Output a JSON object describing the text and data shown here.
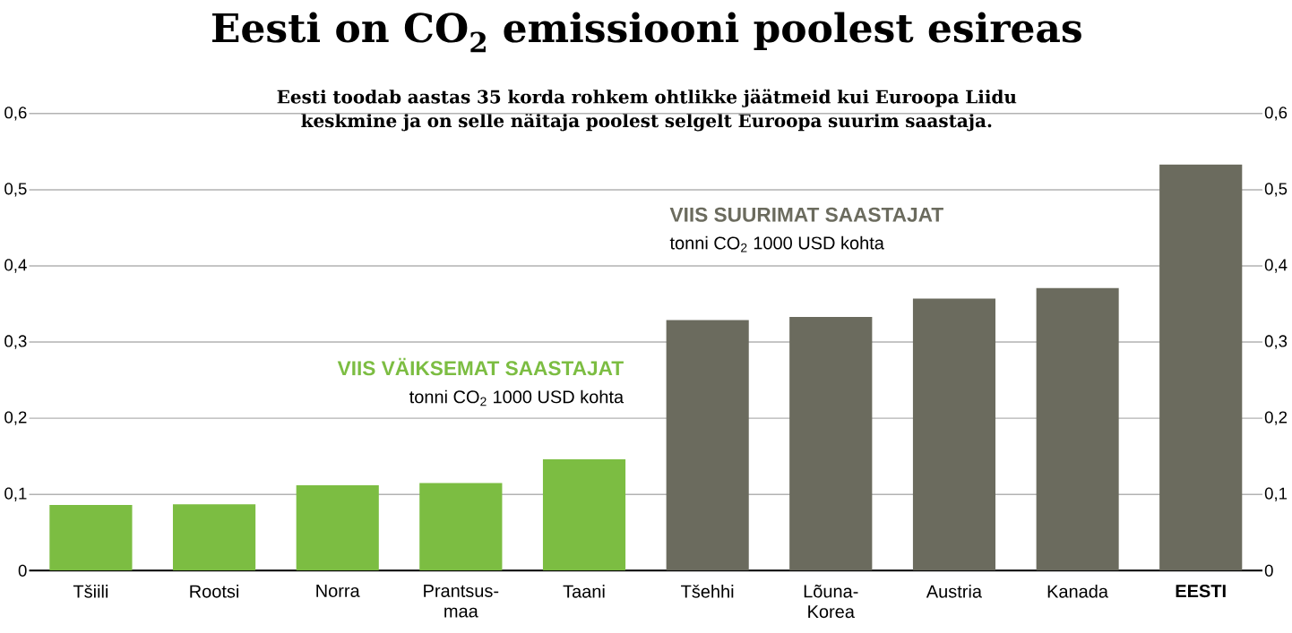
{
  "chart_data": {
    "type": "bar",
    "title": "Eesti on CO$_{2}$ emissiooni poolest esireas",
    "subtitle": "Eesti toodab aastas 35 korda rohkem ohtlikke jäätmeid kui Euroopa Liidu keskmine ja on selle näitaja poolest selgelt Euroopa suurim saastaja.",
    "categories": [
      "Tšiili",
      "Rootsi",
      "Norra",
      "Prantsus-maa",
      "Taani",
      "Tšehhi",
      "Lõuna-Korea",
      "Austria",
      "Kanada",
      "**EESTI**"
    ],
    "values": [
      0.086,
      0.087,
      0.112,
      0.115,
      0.146,
      0.329,
      0.333,
      0.357,
      0.371,
      0.533
    ],
    "colors": [
      "#7cbd42",
      "#7cbd42",
      "#7cbd42",
      "#7cbd42",
      "#7cbd42",
      "#6b6b5e",
      "#6b6b5e",
      "#6b6b5e",
      "#6b6b5e",
      "#6b6b5e"
    ],
    "annotations": [
      "VIIS VÄIKSEMAT SAASTAJAT",
      "tonni CO$_{2}$ 1000 USD kohta",
      "VIIS SUURIMAT SAASTAJAT",
      "tonni CO$_{2}$ 1000 USD kohta"
    ],
    "ylim": [
      0,
      0.6
    ],
    "yticks": [
      0,
      {
        "value": 0.1,
        "label": "0,1"
      },
      {
        "value": 0.2,
        "label": "0,2"
      },
      {
        "value": 0.3,
        "label": "0,3"
      },
      {
        "value": 0.4,
        "label": "0,4"
      },
      {
        "value": 0.5,
        "label": "0,5"
      },
      {
        "value": 0.6,
        "label": "0,6"
      }
    ],
    "y2lim": [
      0,
      0.6
    ],
    "y2ticks": [
      0,
      {
        "value": 0.1,
        "label": "0,1"
      },
      {
        "value": 0.2,
        "label": "0,2"
      },
      {
        "value": 0.3,
        "label": "0,3"
      },
      {
        "value": 0.4,
        "label": "0,4"
      },
      {
        "value": 0.5,
        "label": "0,5"
      },
      {
        "value": 0.6,
        "label": "0,6"
      }
    ],
    "grid": "y"
  }
}
